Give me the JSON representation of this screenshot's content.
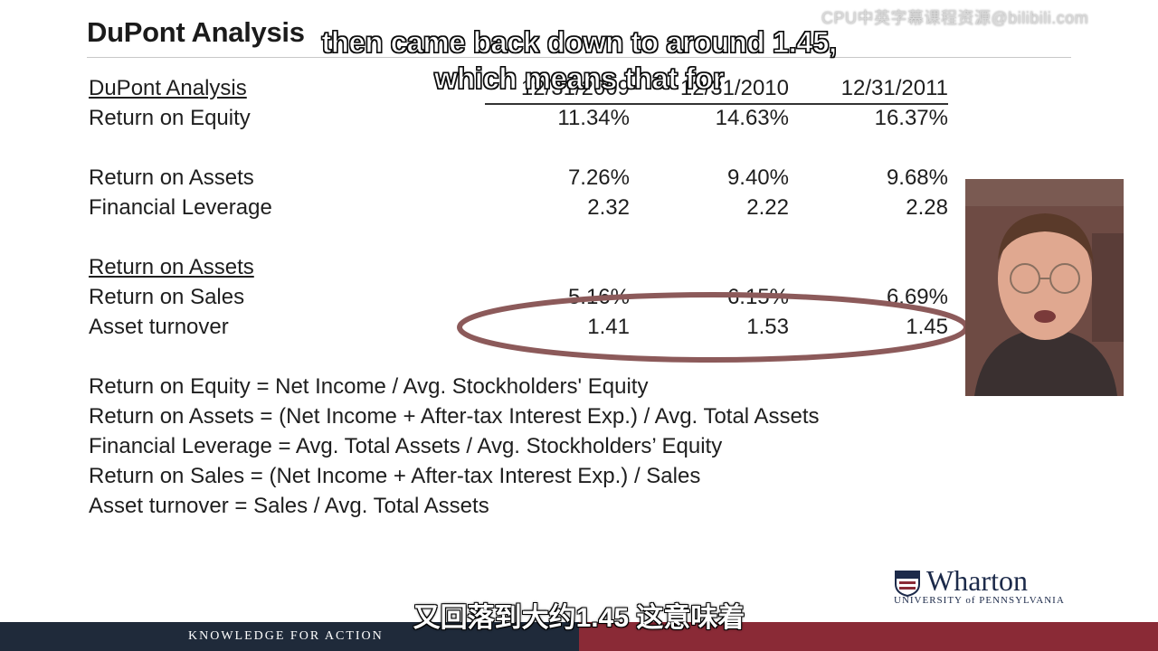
{
  "slide": {
    "title": "DuPont Analysis",
    "watermark": "CPU中英字幕课程资源@bilibili.com"
  },
  "subtitles": {
    "top_line1": "then came back down to around 1.45,",
    "top_line2": "which means that for",
    "bottom": "又回落到大约1.45 这意味着"
  },
  "table": {
    "header_label": "DuPont Analysis",
    "columns": [
      "12/31/2009",
      "12/31/2010",
      "12/31/2011"
    ],
    "roe": {
      "label": "Return on Equity",
      "values": [
        "11.34%",
        "14.63%",
        "16.37%"
      ]
    },
    "roa": {
      "label": "Return on Assets",
      "values": [
        "7.26%",
        "9.40%",
        "9.68%"
      ]
    },
    "leverage": {
      "label": "Financial Leverage",
      "values": [
        "2.32",
        "2.22",
        "2.28"
      ]
    },
    "roa_section_label": "Return on Assets",
    "ros": {
      "label": "Return on Sales",
      "values": [
        "5.16%",
        "6.15%",
        "6.69%"
      ]
    },
    "turnover": {
      "label": "Asset turnover",
      "values": [
        "1.41",
        "1.53",
        "1.45"
      ]
    }
  },
  "formulas": [
    "Return on Equity = Net Income / Avg. Stockholders' Equity",
    "Return on Assets = (Net Income + After-tax Interest Exp.) / Avg. Total Assets",
    "Financial Leverage = Avg. Total Assets / Avg. Stockholders’ Equity",
    "Return on Sales =  (Net Income + After-tax Interest Exp.) / Sales",
    "Asset turnover = Sales / Avg. Total Assets"
  ],
  "logo": {
    "name": "Wharton",
    "university": "UNIVERSITY of PENNSYLVANIA"
  },
  "footer": {
    "tagline": "KNOWLEDGE FOR ACTION"
  },
  "colors": {
    "ellipse": "#8c5a5a",
    "footer_left": "#1f2a3a",
    "footer_right": "#8a2a36"
  }
}
